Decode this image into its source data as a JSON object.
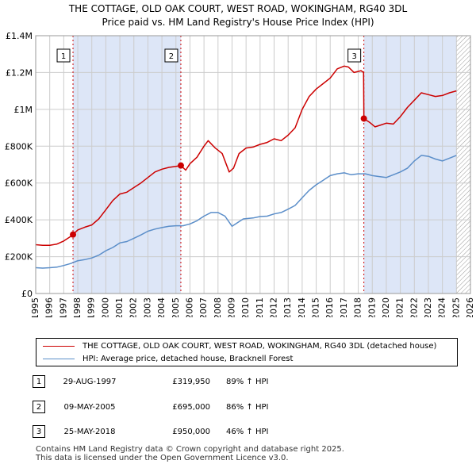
{
  "chart_data": {
    "type": "line",
    "title": "THE COTTAGE, OLD OAK COURT, WEST ROAD, WOKINGHAM, RG40 3DL",
    "subtitle": "Price paid vs. HM Land Registry's House Price Index (HPI)",
    "xlabel": "",
    "ylabel": "",
    "xlim": [
      1995,
      2026
    ],
    "ylim": [
      0,
      1400000
    ],
    "x_ticks": [
      1995,
      1996,
      1997,
      1998,
      1999,
      2000,
      2001,
      2002,
      2003,
      2004,
      2005,
      2006,
      2007,
      2008,
      2009,
      2010,
      2011,
      2012,
      2013,
      2014,
      2015,
      2016,
      2017,
      2018,
      2019,
      2020,
      2021,
      2022,
      2023,
      2024,
      2025,
      2026
    ],
    "y_ticks": [
      {
        "value": 0,
        "label": "£0"
      },
      {
        "value": 200000,
        "label": "£200K"
      },
      {
        "value": 400000,
        "label": "£400K"
      },
      {
        "value": 600000,
        "label": "£600K"
      },
      {
        "value": 800000,
        "label": "£800K"
      },
      {
        "value": 1000000,
        "label": "£1M"
      },
      {
        "value": 1200000,
        "label": "£1.2M"
      },
      {
        "value": 1400000,
        "label": "£1.4M"
      }
    ],
    "grid": true,
    "shaded_regions": [
      {
        "from": 1997.66,
        "to": 2005.35
      },
      {
        "from": 2018.4,
        "to": 2025.0
      }
    ],
    "hatched_region": {
      "from": 2025.0,
      "to": 2026
    },
    "series": [
      {
        "name": "THE COTTAGE, OLD OAK COURT, WEST ROAD, WOKINGHAM, RG40 3DL (detached house)",
        "color": "#cc0000",
        "x": [
          1995,
          1995.5,
          1996,
          1996.5,
          1997,
          1997.5,
          1997.66,
          1998,
          1998.5,
          1999,
          1999.5,
          2000,
          2000.5,
          2001,
          2001.5,
          2002,
          2002.5,
          2003,
          2003.5,
          2004,
          2004.5,
          2005,
          2005.35,
          2005.7,
          2006,
          2006.5,
          2007,
          2007.3,
          2007.8,
          2008.3,
          2008.8,
          2009.1,
          2009.5,
          2010,
          2010.5,
          2011,
          2011.5,
          2012,
          2012.5,
          2013,
          2013.5,
          2014,
          2014.5,
          2015,
          2015.5,
          2016,
          2016.5,
          2017,
          2017.3,
          2017.7,
          2018.2,
          2018.38,
          2018.4,
          2018.8,
          2019.2,
          2019.6,
          2020,
          2020.5,
          2021,
          2021.5,
          2022,
          2022.5,
          2023,
          2023.5,
          2024,
          2024.5,
          2025
        ],
        "values": [
          265000,
          262000,
          262000,
          268000,
          285000,
          310000,
          319950,
          345000,
          360000,
          372000,
          405000,
          455000,
          505000,
          540000,
          550000,
          575000,
          600000,
          630000,
          660000,
          675000,
          685000,
          690000,
          695000,
          670000,
          705000,
          740000,
          800000,
          830000,
          790000,
          760000,
          660000,
          680000,
          760000,
          790000,
          795000,
          810000,
          820000,
          840000,
          830000,
          860000,
          900000,
          1000000,
          1070000,
          1110000,
          1140000,
          1170000,
          1220000,
          1235000,
          1230000,
          1200000,
          1210000,
          1200000,
          950000,
          930000,
          905000,
          915000,
          925000,
          920000,
          960000,
          1010000,
          1050000,
          1090000,
          1080000,
          1070000,
          1075000,
          1090000,
          1100000
        ]
      },
      {
        "name": "HPI: Average price, detached house, Bracknell Forest",
        "color": "#5b8ec9",
        "x": [
          1995,
          1995.5,
          1996,
          1996.5,
          1997,
          1997.5,
          1998,
          1998.5,
          1999,
          1999.5,
          2000,
          2000.5,
          2001,
          2001.5,
          2002,
          2002.5,
          2003,
          2003.5,
          2004,
          2004.5,
          2005,
          2005.5,
          2006,
          2006.5,
          2007,
          2007.5,
          2008,
          2008.5,
          2009,
          2009.3,
          2009.8,
          2010.5,
          2011,
          2011.5,
          2012,
          2012.5,
          2013,
          2013.5,
          2014,
          2014.5,
          2015,
          2015.5,
          2016,
          2016.5,
          2017,
          2017.5,
          2018,
          2018.5,
          2019,
          2019.5,
          2020,
          2020.5,
          2021,
          2021.5,
          2022,
          2022.5,
          2023,
          2023.5,
          2024,
          2024.5,
          2025
        ],
        "values": [
          140000,
          138000,
          140000,
          143000,
          152000,
          163000,
          178000,
          184000,
          193000,
          208000,
          232000,
          250000,
          275000,
          282000,
          300000,
          318000,
          338000,
          350000,
          358000,
          365000,
          368000,
          368000,
          378000,
          395000,
          420000,
          440000,
          440000,
          420000,
          365000,
          380000,
          405000,
          410000,
          418000,
          420000,
          432000,
          440000,
          458000,
          478000,
          520000,
          560000,
          590000,
          615000,
          640000,
          650000,
          655000,
          645000,
          650000,
          650000,
          640000,
          635000,
          630000,
          645000,
          660000,
          680000,
          720000,
          750000,
          745000,
          730000,
          720000,
          735000,
          750000
        ]
      }
    ],
    "sales": [
      {
        "label": "1",
        "x": 1997.66,
        "value": 319950
      },
      {
        "label": "2",
        "x": 2005.35,
        "value": 695000
      },
      {
        "label": "3",
        "x": 2018.4,
        "value": 950000
      }
    ]
  },
  "legend": {
    "property_label": "THE COTTAGE, OLD OAK COURT, WEST ROAD, WOKINGHAM, RG40 3DL (detached house)",
    "hpi_label": "HPI: Average price, detached house, Bracknell Forest"
  },
  "transactions": [
    {
      "num": "1",
      "date": "29-AUG-1997",
      "price": "£319,950",
      "hpi": "89% ↑ HPI"
    },
    {
      "num": "2",
      "date": "09-MAY-2005",
      "price": "£695,000",
      "hpi": "86% ↑ HPI"
    },
    {
      "num": "3",
      "date": "25-MAY-2018",
      "price": "£950,000",
      "hpi": "46% ↑ HPI"
    }
  ],
  "footer": {
    "line1": "Contains HM Land Registry data © Crown copyright and database right 2025.",
    "line2": "This data is licensed under the Open Government Licence v3.0."
  },
  "colors": {
    "property": "#cc0000",
    "hpi": "#5b8ec9",
    "shade": "#dde6f7",
    "grid": "#cccccc"
  }
}
